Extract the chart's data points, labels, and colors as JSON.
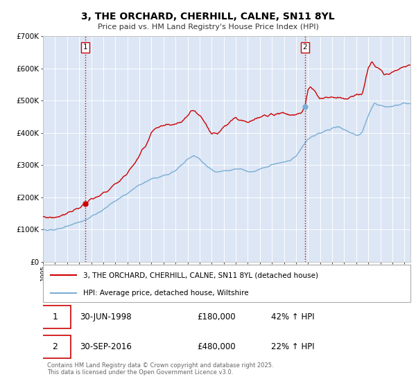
{
  "title": "3, THE ORCHARD, CHERHILL, CALNE, SN11 8YL",
  "subtitle": "Price paid vs. HM Land Registry's House Price Index (HPI)",
  "plot_bg_color": "#dce6f5",
  "grid_color": "#ffffff",
  "ylim": [
    0,
    700000
  ],
  "yticks": [
    0,
    100000,
    200000,
    300000,
    400000,
    500000,
    600000,
    700000
  ],
  "ytick_labels": [
    "£0",
    "£100K",
    "£200K",
    "£300K",
    "£400K",
    "£500K",
    "£600K",
    "£700K"
  ],
  "red_line_color": "#cc0000",
  "blue_line_color": "#7aadd4",
  "vline_color": "#cc0000",
  "purchase1_year": 1998.5,
  "purchase1_price": 180000,
  "purchase1_label": "1",
  "purchase2_year": 2016.75,
  "purchase2_price": 480000,
  "purchase2_label": "2",
  "legend_red_label": "3, THE ORCHARD, CHERHILL, CALNE, SN11 8YL (detached house)",
  "legend_blue_label": "HPI: Average price, detached house, Wiltshire",
  "transaction1_num": "1",
  "transaction1_date": "30-JUN-1998",
  "transaction1_price": "£180,000",
  "transaction1_hpi": "42% ↑ HPI",
  "transaction2_num": "2",
  "transaction2_date": "30-SEP-2016",
  "transaction2_price": "£480,000",
  "transaction2_hpi": "22% ↑ HPI",
  "footer": "Contains HM Land Registry data © Crown copyright and database right 2025.\nThis data is licensed under the Open Government Licence v3.0.",
  "xmin": 1995.0,
  "xmax": 2025.5
}
